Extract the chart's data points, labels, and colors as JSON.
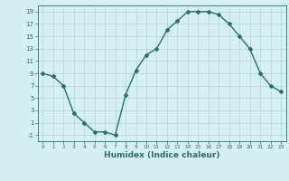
{
  "x": [
    0,
    1,
    2,
    3,
    4,
    5,
    6,
    7,
    8,
    9,
    10,
    11,
    12,
    13,
    14,
    15,
    16,
    17,
    18,
    19,
    20,
    21,
    22,
    23
  ],
  "y": [
    9,
    8.5,
    7,
    2.5,
    1,
    -0.5,
    -0.5,
    -1,
    5.5,
    9.5,
    12,
    13,
    16,
    17.5,
    19,
    19,
    19,
    18.5,
    17,
    15,
    13,
    9,
    7,
    6
  ],
  "xlabel": "Humidex (Indice chaleur)",
  "ylabel": "",
  "xlim": [
    -0.5,
    23.5
  ],
  "ylim": [
    -2,
    20
  ],
  "yticks": [
    -1,
    1,
    3,
    5,
    7,
    9,
    11,
    13,
    15,
    17,
    19
  ],
  "xticks": [
    0,
    1,
    2,
    3,
    4,
    5,
    6,
    7,
    8,
    9,
    10,
    11,
    12,
    13,
    14,
    15,
    16,
    17,
    18,
    19,
    20,
    21,
    22,
    23
  ],
  "line_color": "#2d6e6e",
  "bg_color": "#d6eff0",
  "grid_color": "#b0d8da",
  "marker": "D",
  "marker_size": 2.0,
  "line_width": 1.0
}
